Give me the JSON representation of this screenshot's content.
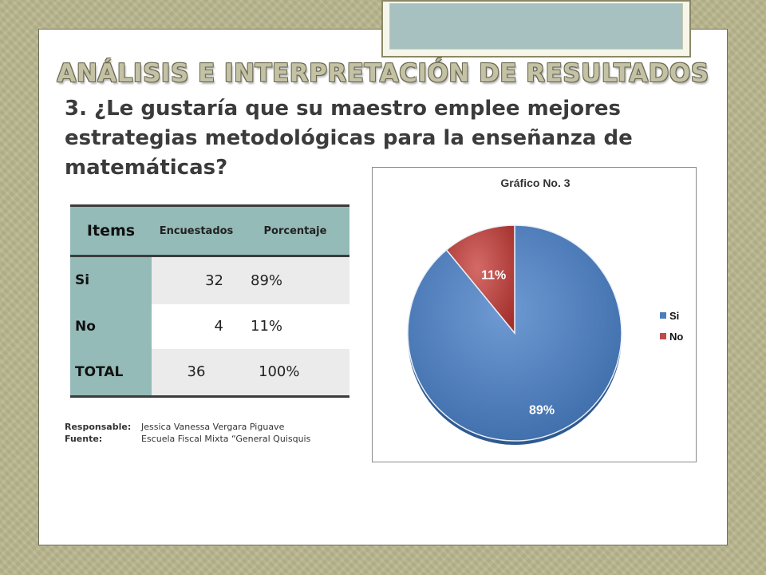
{
  "title": "ANÁLISIS E INTERPRETACIÓN DE RESULTADOS",
  "question": "3. ¿Le gustaría que su maestro emplee mejores estrategias metodológicas para la enseñanza de matemáticas?",
  "table": {
    "headers": [
      "Items",
      "Encuestados",
      "Porcentaje"
    ],
    "rows": [
      {
        "label": "Si",
        "count": "32",
        "percent": "89%"
      },
      {
        "label": "No",
        "count": "4",
        "percent": "11%"
      },
      {
        "label": "TOTAL",
        "count": "36",
        "percent": "100%"
      }
    ]
  },
  "credits": {
    "responsable_label": "Responsable:",
    "responsable_value": "Jessica Vanessa Vergara Piguave",
    "fuente_label": "Fuente:",
    "fuente_value": "Escuela Fiscal Mixta “General Quisquis"
  },
  "chart_data": {
    "type": "pie",
    "title": "Gráfico No. 3",
    "categories": [
      "Si",
      "No"
    ],
    "values": [
      89,
      11
    ],
    "data_labels": [
      "89%",
      "11%"
    ],
    "colors": [
      "#4a7ebb",
      "#be4b48"
    ],
    "legend_position": "right"
  }
}
